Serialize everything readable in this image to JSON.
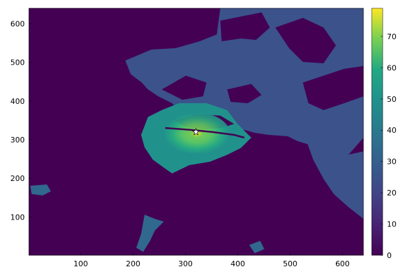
{
  "chart_data": {
    "type": "heatmap",
    "title": "",
    "xlabel": "",
    "ylabel": "",
    "xlim": [
      1,
      640
    ],
    "ylim": [
      1,
      640
    ],
    "x_ticks": [
      100,
      200,
      300,
      400,
      500,
      600
    ],
    "y_ticks": [
      100,
      200,
      300,
      400,
      500,
      600
    ],
    "x_tick_labels": [
      "100",
      "200",
      "300",
      "400",
      "500",
      "600"
    ],
    "y_tick_labels": [
      "100",
      "200",
      "300",
      "400",
      "500",
      "600"
    ],
    "colorbar": {
      "range": [
        0,
        79
      ],
      "ticks": [
        0,
        10,
        20,
        30,
        40,
        50,
        60,
        70
      ],
      "tick_labels": [
        "0",
        "10",
        "20",
        "30",
        "40",
        "50",
        "60",
        "70"
      ],
      "colormap": "viridis"
    },
    "grid": false,
    "legend": "none",
    "marker": {
      "x": 320,
      "y": 320,
      "symbol": "star",
      "color": "#ffffff"
    },
    "colors": {
      "background": "#440154",
      "low": "#3b528b",
      "mid": "#21918c",
      "high": "#5ec962",
      "peak": "#fde725"
    }
  }
}
